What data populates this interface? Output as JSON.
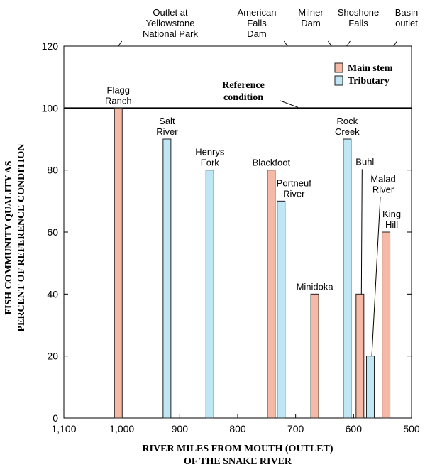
{
  "chart_data": {
    "type": "bar",
    "x_label": [
      "RIVER MILES FROM MOUTH (OUTLET)",
      "OF THE SNAKE RIVER"
    ],
    "y_label": [
      "FISH COMMUNITY QUALITY AS",
      "PERCENT OF REFERENCE CONDITION"
    ],
    "xlim": [
      1100,
      500
    ],
    "xticks": [
      {
        "value": 1100,
        "label": "1,100"
      },
      {
        "value": 1000,
        "label": "1,000"
      },
      900,
      800,
      700,
      600,
      500
    ],
    "ylim": [
      0,
      120
    ],
    "yticks": [
      0,
      20,
      40,
      60,
      80,
      100,
      120
    ],
    "legend": "upper right",
    "reference": {
      "value": 100,
      "label": [
        "Reference",
        "condition"
      ]
    },
    "annotations": [
      {
        "text": [
          "Outlet at",
          "Yellowstone",
          "National Park"
        ],
        "x": 1006
      },
      {
        "text": [
          "American",
          "Falls",
          "Dam"
        ],
        "x": 714
      },
      {
        "text": [
          "Milner",
          "Dam"
        ],
        "x": 638
      },
      {
        "text": [
          "Shoshone",
          "Falls"
        ],
        "x": 612
      },
      {
        "text": [
          "Basin",
          "outlet"
        ],
        "x": 531
      }
    ],
    "series": [
      {
        "name": "Main stem",
        "color": "#f5b9a6",
        "x": [
          1006,
          742,
          667,
          589,
          544
        ],
        "values": [
          100,
          80,
          40,
          40,
          60
        ],
        "labels": [
          [
            "Flagg",
            "Ranch"
          ],
          [
            "Blackfoot"
          ],
          [
            "Minidoka"
          ],
          [
            "Buhl"
          ],
          [
            "King",
            "Hill"
          ]
        ]
      },
      {
        "name": "Tributary",
        "color": "#bfe6f4",
        "x": [
          922,
          848,
          725,
          611,
          571
        ],
        "values": [
          90,
          80,
          70,
          90,
          20
        ],
        "labels": [
          [
            "Salt",
            "River"
          ],
          [
            "Henrys",
            "Fork"
          ],
          [
            "Portneuf",
            "River"
          ],
          [
            "Rock",
            "Creek"
          ],
          [
            "Malad",
            "River"
          ]
        ]
      }
    ]
  }
}
